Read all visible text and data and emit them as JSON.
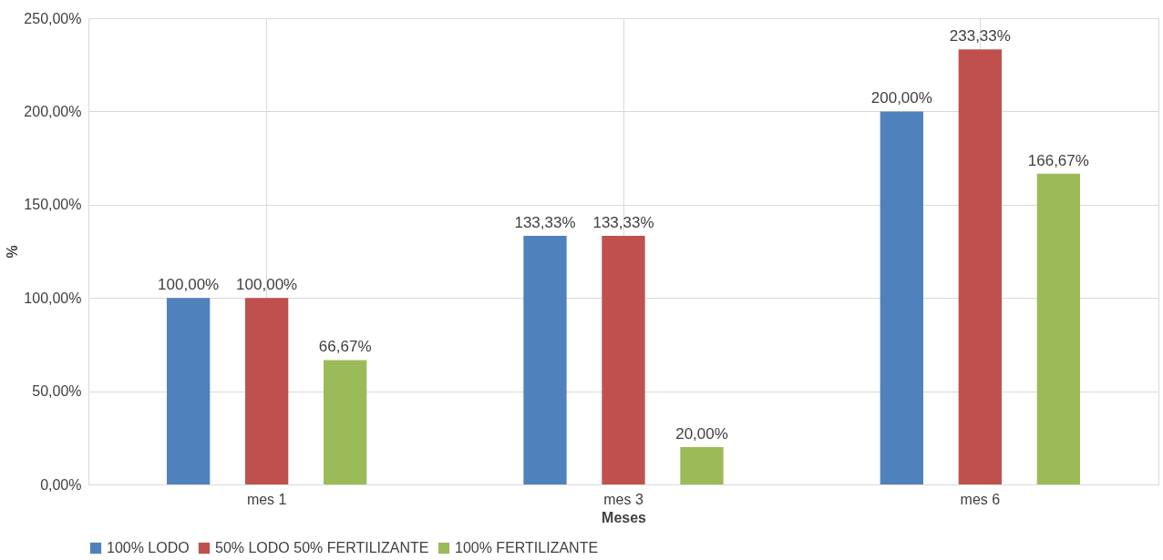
{
  "chart_data": {
    "type": "bar",
    "xlabel": "Meses",
    "ylabel": "%",
    "categories": [
      "mes 1",
      "mes 3",
      "mes 6"
    ],
    "series": [
      {
        "name": "100% LODO",
        "color": "#4f81bd",
        "values": [
          100,
          133.33,
          200
        ],
        "value_labels": [
          "100,00%",
          "133,33%",
          "200,00%"
        ]
      },
      {
        "name": "50% LODO 50% FERTILIZANTE",
        "color": "#c0504d",
        "values": [
          100,
          133.33,
          233.33
        ],
        "value_labels": [
          "100,00%",
          "133,33%",
          "233,33%"
        ]
      },
      {
        "name": "100% FERTILIZANTE",
        "color": "#9bbb59",
        "values": [
          66.67,
          20,
          166.67
        ],
        "value_labels": [
          "66,67%",
          "20,00%",
          "166,67%"
        ]
      }
    ],
    "ylim": [
      0,
      250
    ],
    "yticks": [
      {
        "value": 0,
        "label": "0,00%"
      },
      {
        "value": 50,
        "label": "50,00%"
      },
      {
        "value": 100,
        "label": "100,00%"
      },
      {
        "value": 150,
        "label": "150,00%"
      },
      {
        "value": 200,
        "label": "200,00%"
      },
      {
        "value": 250,
        "label": "250,00%"
      }
    ],
    "grid": true,
    "legend": "bottom"
  }
}
